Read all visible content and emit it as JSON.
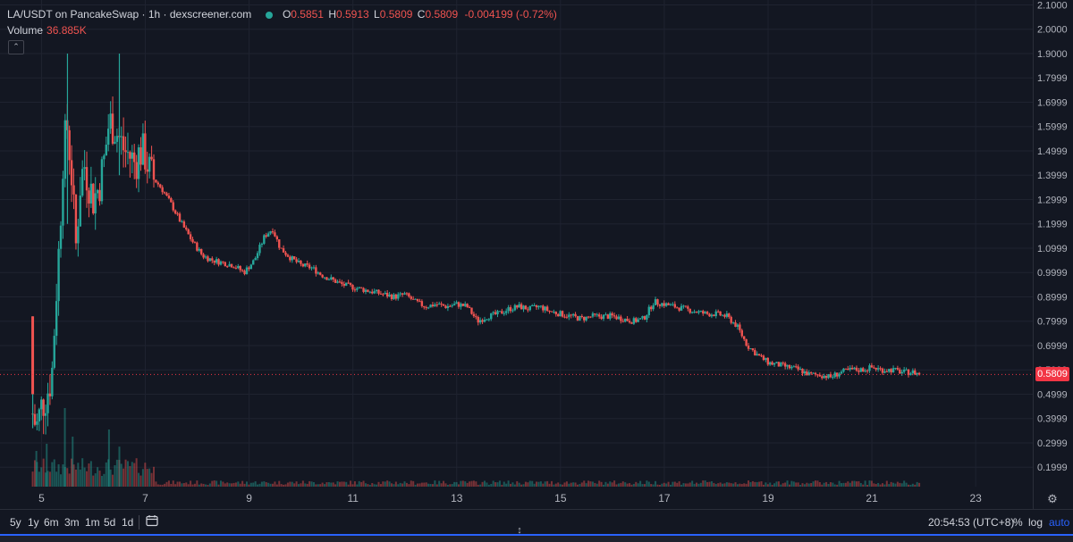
{
  "legend": {
    "title": "LA/USDT on PancakeSwap · 1h · dexscreener.com",
    "open_key": "O",
    "open": "0.5851",
    "high_key": "H",
    "high": "0.5913",
    "low_key": "L",
    "low": "0.5809",
    "close_key": "C",
    "close": "0.5809",
    "change": "-0.004199 (-0.72%)"
  },
  "volume_legend": {
    "label": "Volume",
    "value": "36.885K"
  },
  "last_price_tag": "0.5809",
  "bottom_bar": {
    "ranges": [
      "5y",
      "1y",
      "6m",
      "3m",
      "1m",
      "5d",
      "1d"
    ],
    "time": "20:54:53 (UTC+8)",
    "percent": "%",
    "log": "log",
    "auto": "auto"
  },
  "colors": {
    "up": "#26a69a",
    "down": "#ef5350",
    "background": "#131722",
    "grid": "#1f2330",
    "accent": "#2962ff"
  },
  "icons": {
    "calendar": "calendar-icon",
    "settings": "gear-icon",
    "collapse": "chevron-up-icon",
    "resize": "resize-vertical-icon"
  },
  "chart_data": {
    "type": "candlestick",
    "y_ticks": [
      "2.1000",
      "2.0000",
      "1.9000",
      "1.7999",
      "1.6999",
      "1.5999",
      "1.4999",
      "1.3999",
      "1.2999",
      "1.1999",
      "1.0999",
      "0.9999",
      "0.8999",
      "0.7999",
      "0.6999",
      "0.5999",
      "0.4999",
      "0.3999",
      "0.2999",
      "0.1999"
    ],
    "x_ticks": [
      "5",
      "7",
      "9",
      "11",
      "13",
      "15",
      "17",
      "19",
      "21",
      "23"
    ],
    "x_tick_days": [
      5,
      7,
      9,
      11,
      13,
      15,
      17,
      19,
      21,
      23
    ],
    "ylim": [
      0.12,
      2.12
    ],
    "xlim_days": [
      4.2,
      24.1
    ],
    "price_path": [
      [
        4.83,
        0.42
      ],
      [
        4.9,
        0.36
      ],
      [
        5.0,
        0.45
      ],
      [
        5.1,
        0.5
      ],
      [
        5.2,
        0.58
      ],
      [
        5.28,
        0.9
      ],
      [
        5.35,
        1.15
      ],
      [
        5.42,
        1.5
      ],
      [
        5.5,
        1.6
      ],
      [
        5.58,
        1.4
      ],
      [
        5.66,
        1.1
      ],
      [
        5.74,
        1.35
      ],
      [
        5.82,
        1.45
      ],
      [
        5.9,
        1.38
      ],
      [
        6.0,
        1.3
      ],
      [
        6.1,
        1.35
      ],
      [
        6.2,
        1.45
      ],
      [
        6.3,
        1.62
      ],
      [
        6.4,
        1.6
      ],
      [
        6.5,
        1.55
      ],
      [
        6.6,
        1.5
      ],
      [
        6.7,
        1.48
      ],
      [
        6.8,
        1.45
      ],
      [
        6.9,
        1.5
      ],
      [
        7.0,
        1.48
      ],
      [
        7.1,
        1.4
      ],
      [
        7.3,
        1.35
      ],
      [
        7.5,
        1.28
      ],
      [
        7.7,
        1.2
      ],
      [
        7.9,
        1.13
      ],
      [
        8.1,
        1.07
      ],
      [
        8.3,
        1.05
      ],
      [
        8.5,
        1.04
      ],
      [
        8.7,
        1.03
      ],
      [
        8.9,
        1.0
      ],
      [
        9.1,
        1.05
      ],
      [
        9.3,
        1.15
      ],
      [
        9.45,
        1.18
      ],
      [
        9.6,
        1.1
      ],
      [
        9.8,
        1.06
      ],
      [
        10.0,
        1.03
      ],
      [
        10.2,
        1.02
      ],
      [
        10.4,
        0.99
      ],
      [
        10.6,
        0.97
      ],
      [
        10.8,
        0.95
      ],
      [
        11.0,
        0.94
      ],
      [
        11.2,
        0.93
      ],
      [
        11.4,
        0.92
      ],
      [
        11.6,
        0.91
      ],
      [
        11.8,
        0.9
      ],
      [
        12.0,
        0.91
      ],
      [
        12.2,
        0.88
      ],
      [
        12.4,
        0.86
      ],
      [
        12.6,
        0.87
      ],
      [
        12.8,
        0.86
      ],
      [
        13.0,
        0.87
      ],
      [
        13.2,
        0.86
      ],
      [
        13.4,
        0.8
      ],
      [
        13.6,
        0.82
      ],
      [
        13.8,
        0.83
      ],
      [
        14.0,
        0.85
      ],
      [
        14.2,
        0.86
      ],
      [
        14.4,
        0.85
      ],
      [
        14.6,
        0.86
      ],
      [
        14.8,
        0.84
      ],
      [
        15.0,
        0.83
      ],
      [
        15.2,
        0.82
      ],
      [
        15.4,
        0.81
      ],
      [
        15.6,
        0.82
      ],
      [
        15.8,
        0.82
      ],
      [
        16.0,
        0.82
      ],
      [
        16.2,
        0.81
      ],
      [
        16.4,
        0.8
      ],
      [
        16.6,
        0.81
      ],
      [
        16.8,
        0.88
      ],
      [
        17.0,
        0.87
      ],
      [
        17.2,
        0.86
      ],
      [
        17.4,
        0.85
      ],
      [
        17.6,
        0.84
      ],
      [
        17.8,
        0.83
      ],
      [
        18.0,
        0.83
      ],
      [
        18.2,
        0.82
      ],
      [
        18.4,
        0.78
      ],
      [
        18.6,
        0.7
      ],
      [
        18.8,
        0.66
      ],
      [
        19.0,
        0.63
      ],
      [
        19.2,
        0.62
      ],
      [
        19.4,
        0.61
      ],
      [
        19.6,
        0.6
      ],
      [
        19.8,
        0.58
      ],
      [
        20.0,
        0.58
      ],
      [
        20.2,
        0.57
      ],
      [
        20.4,
        0.59
      ],
      [
        20.6,
        0.6
      ],
      [
        20.8,
        0.6
      ],
      [
        21.0,
        0.61
      ],
      [
        21.2,
        0.6
      ],
      [
        21.4,
        0.6
      ],
      [
        21.6,
        0.59
      ],
      [
        21.8,
        0.59
      ],
      [
        21.95,
        0.5809
      ]
    ],
    "spikes": [
      {
        "day": 4.83,
        "high": 0.82,
        "low": 0.36
      },
      {
        "day": 5.5,
        "high": 1.9,
        "low": 1.2
      },
      {
        "day": 6.5,
        "high": 1.9,
        "low": 1.4
      }
    ],
    "volume_spikes": [
      {
        "day": 5.45,
        "rel": 0.55
      },
      {
        "day": 5.6,
        "rel": 0.35
      },
      {
        "day": 6.3,
        "rel": 0.4
      },
      {
        "day": 6.5,
        "rel": 0.28
      },
      {
        "day": 5.1,
        "rel": 0.3
      },
      {
        "day": 4.9,
        "rel": 0.25
      }
    ],
    "last_price": 0.5809,
    "grid": true
  }
}
